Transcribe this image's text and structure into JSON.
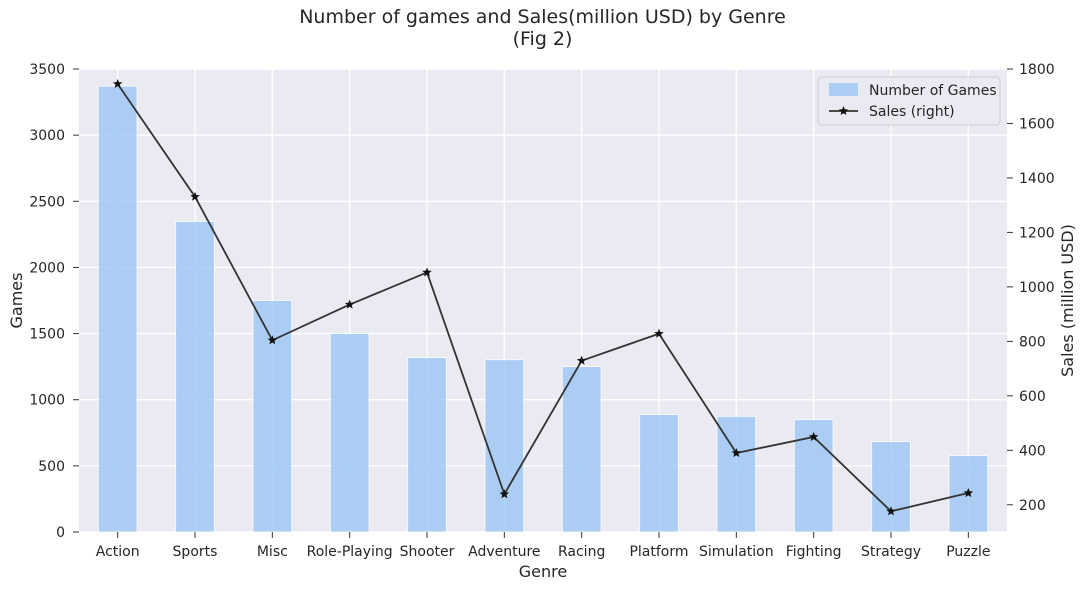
{
  "chart_data": {
    "type": "bar",
    "title": "Number of games and Sales(million USD) by Genre",
    "subtitle": "(Fig 2)",
    "xlabel": "Genre",
    "ylabel": "Games",
    "ylabel_right": "Sales (million USD)",
    "categories": [
      "Action",
      "Sports",
      "Misc",
      "Role-Playing",
      "Shooter",
      "Adventure",
      "Racing",
      "Platform",
      "Simulation",
      "Fighting",
      "Strategy",
      "Puzzle"
    ],
    "series": [
      {
        "name": "Number of Games",
        "type": "bar",
        "axis": "left",
        "color": "#a1c9f4",
        "values": [
          3370,
          2347,
          1750,
          1500,
          1318,
          1302,
          1250,
          888,
          874,
          849,
          683,
          578
        ]
      },
      {
        "name": "Sales (right)",
        "type": "line",
        "axis": "right",
        "marker": "star",
        "color": "#333333",
        "values": [
          1745,
          1331,
          804,
          935,
          1053,
          239,
          729,
          828,
          390,
          449,
          176,
          243
        ]
      }
    ],
    "ylim": [
      0,
      3500
    ],
    "yticks": [
      0,
      500,
      1000,
      1500,
      2000,
      2500,
      3000,
      3500
    ],
    "ylim_right": [
      100,
      1800
    ],
    "yticks_right": [
      200,
      400,
      600,
      800,
      1000,
      1200,
      1400,
      1600,
      1800
    ],
    "grid": true,
    "legend": "top-right",
    "background_color": "#eaeaf2"
  }
}
